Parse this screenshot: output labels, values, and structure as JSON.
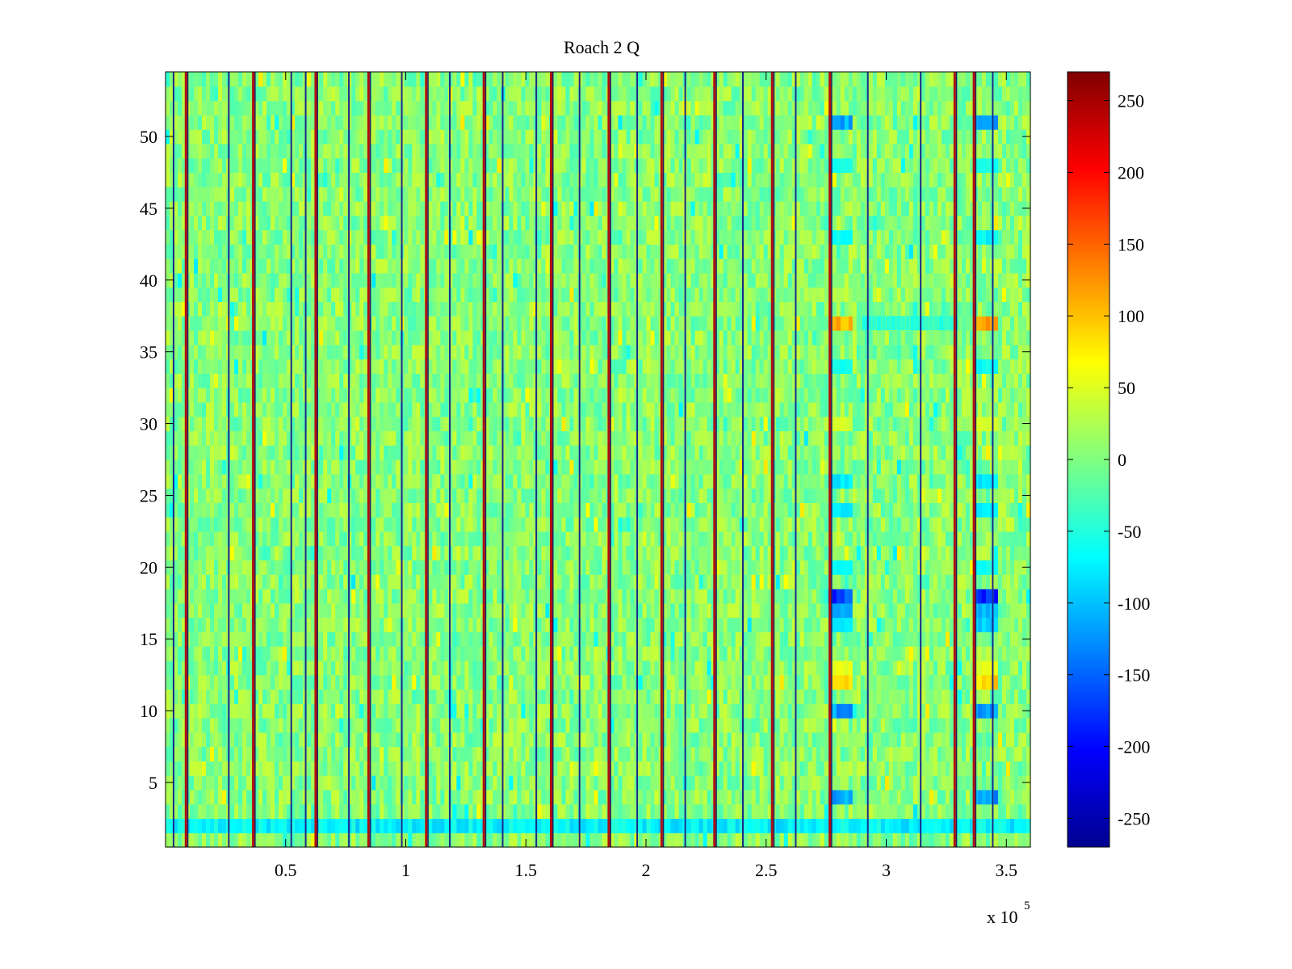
{
  "chart_data": {
    "type": "heatmap",
    "title": "Roach 2 Q",
    "xlabel": "",
    "ylabel": "",
    "x_multiplier_label": "x 10",
    "x_multiplier_exponent": "5",
    "xlim": [
      0,
      360000
    ],
    "ylim": [
      0.5,
      54.5
    ],
    "x_ticks": [
      50000,
      100000,
      150000,
      200000,
      250000,
      300000,
      350000
    ],
    "x_tick_labels": [
      "0.5",
      "1",
      "1.5",
      "2",
      "2.5",
      "3",
      "3.5"
    ],
    "y_ticks": [
      5,
      10,
      15,
      20,
      25,
      30,
      35,
      40,
      45,
      50
    ],
    "y_tick_labels": [
      "5",
      "10",
      "15",
      "20",
      "25",
      "30",
      "35",
      "40",
      "45",
      "50"
    ],
    "rows": 54,
    "colorbar": {
      "colormap": "jet",
      "clim": [
        -270,
        270
      ],
      "ticks": [
        250,
        200,
        150,
        100,
        50,
        0,
        -50,
        -100,
        -150,
        -200,
        -250
      ],
      "tick_labels": [
        "250",
        "200",
        "150",
        "100",
        "50",
        "0",
        "-50",
        "-100",
        "-150",
        "-200",
        "-250"
      ]
    },
    "background_value_range": [
      -30,
      40
    ],
    "red_stripes_x": [
      8000,
      36000,
      62000,
      84000,
      108000,
      132000,
      160000,
      184000,
      206000,
      228000,
      252000,
      276000,
      328000,
      336000
    ],
    "dark_stripes_x": [
      3000,
      26000,
      52000,
      58000,
      76000,
      98000,
      118000,
      140000,
      154000,
      172000,
      196000,
      216000,
      240000,
      262000,
      292000,
      314000,
      344000
    ],
    "anomaly_columns_x": [
      [
        276000,
        286000
      ],
      [
        336000,
        346000
      ]
    ],
    "anomaly_rows": [
      {
        "y": 51,
        "value": -110
      },
      {
        "y": 48,
        "value": -60
      },
      {
        "y": 43,
        "value": -70
      },
      {
        "y": 37,
        "value": 110
      },
      {
        "y": 34,
        "value": -65
      },
      {
        "y": 30,
        "value": 45
      },
      {
        "y": 26,
        "value": -80
      },
      {
        "y": 24,
        "value": -70
      },
      {
        "y": 20,
        "value": -60
      },
      {
        "y": 18,
        "value": -170
      },
      {
        "y": 17,
        "value": -100
      },
      {
        "y": 16,
        "value": -90
      },
      {
        "y": 13,
        "value": 55
      },
      {
        "y": 12,
        "value": 90
      },
      {
        "y": 10,
        "value": -120
      },
      {
        "y": 4,
        "value": -120
      }
    ],
    "row2_value": -80
  }
}
